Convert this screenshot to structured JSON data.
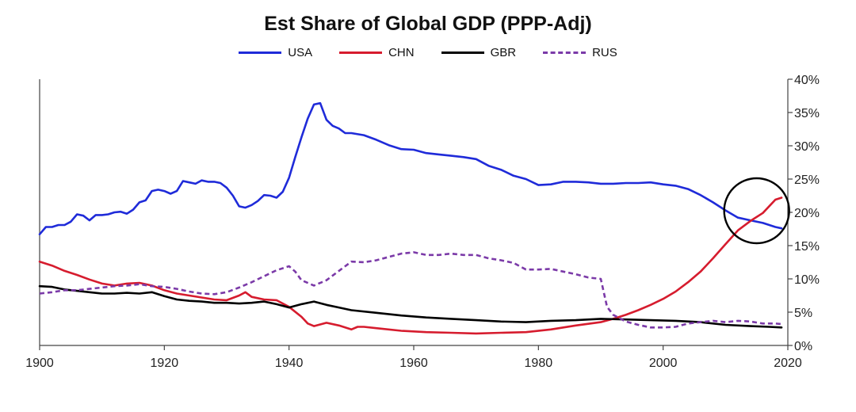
{
  "chart_data": {
    "type": "line",
    "title": "Est Share of Global GDP (PPP-Adj)",
    "xlabel": "",
    "ylabel": "",
    "xlim": [
      1900,
      2020
    ],
    "ylim": [
      0,
      0.4
    ],
    "x_ticks": [
      1900,
      1920,
      1940,
      1960,
      1980,
      2000,
      2020
    ],
    "x_tick_labels": [
      "1900",
      "1920",
      "1940",
      "1960",
      "1980",
      "2000",
      "2020"
    ],
    "y_ticks": [
      0,
      0.05,
      0.1,
      0.15,
      0.2,
      0.25,
      0.3,
      0.35,
      0.4
    ],
    "y_tick_labels": [
      "0%",
      "5%",
      "10%",
      "15%",
      "20%",
      "25%",
      "30%",
      "35%",
      "40%"
    ],
    "y_axis_side": "right",
    "legend_position": "top-center",
    "annotation": {
      "type": "circle",
      "center_year": 2015,
      "center_value": 0.2,
      "note": "crossover of USA and CHN"
    },
    "series": [
      {
        "name": "USA",
        "color": "#1f2bd9",
        "style": "solid",
        "points": [
          [
            1900,
            0.167
          ],
          [
            1901,
            0.178
          ],
          [
            1902,
            0.178
          ],
          [
            1903,
            0.181
          ],
          [
            1904,
            0.181
          ],
          [
            1905,
            0.186
          ],
          [
            1906,
            0.197
          ],
          [
            1907,
            0.195
          ],
          [
            1908,
            0.188
          ],
          [
            1909,
            0.196
          ],
          [
            1910,
            0.196
          ],
          [
            1911,
            0.197
          ],
          [
            1912,
            0.2
          ],
          [
            1913,
            0.201
          ],
          [
            1914,
            0.198
          ],
          [
            1915,
            0.204
          ],
          [
            1916,
            0.215
          ],
          [
            1917,
            0.218
          ],
          [
            1918,
            0.232
          ],
          [
            1919,
            0.234
          ],
          [
            1920,
            0.232
          ],
          [
            1921,
            0.228
          ],
          [
            1922,
            0.232
          ],
          [
            1923,
            0.247
          ],
          [
            1924,
            0.245
          ],
          [
            1925,
            0.243
          ],
          [
            1926,
            0.248
          ],
          [
            1927,
            0.246
          ],
          [
            1928,
            0.246
          ],
          [
            1929,
            0.244
          ],
          [
            1930,
            0.237
          ],
          [
            1931,
            0.225
          ],
          [
            1932,
            0.209
          ],
          [
            1933,
            0.207
          ],
          [
            1934,
            0.211
          ],
          [
            1935,
            0.217
          ],
          [
            1936,
            0.226
          ],
          [
            1937,
            0.225
          ],
          [
            1938,
            0.222
          ],
          [
            1939,
            0.231
          ],
          [
            1940,
            0.252
          ],
          [
            1941,
            0.283
          ],
          [
            1942,
            0.313
          ],
          [
            1943,
            0.341
          ],
          [
            1944,
            0.362
          ],
          [
            1945,
            0.364
          ],
          [
            1946,
            0.339
          ],
          [
            1947,
            0.33
          ],
          [
            1948,
            0.326
          ],
          [
            1949,
            0.319
          ],
          [
            1950,
            0.319
          ],
          [
            1952,
            0.316
          ],
          [
            1954,
            0.309
          ],
          [
            1956,
            0.301
          ],
          [
            1958,
            0.295
          ],
          [
            1960,
            0.294
          ],
          [
            1962,
            0.289
          ],
          [
            1964,
            0.287
          ],
          [
            1966,
            0.285
          ],
          [
            1968,
            0.283
          ],
          [
            1970,
            0.28
          ],
          [
            1972,
            0.27
          ],
          [
            1974,
            0.264
          ],
          [
            1976,
            0.255
          ],
          [
            1978,
            0.25
          ],
          [
            1980,
            0.241
          ],
          [
            1982,
            0.242
          ],
          [
            1984,
            0.246
          ],
          [
            1986,
            0.246
          ],
          [
            1988,
            0.245
          ],
          [
            1990,
            0.243
          ],
          [
            1992,
            0.243
          ],
          [
            1994,
            0.244
          ],
          [
            1996,
            0.244
          ],
          [
            1998,
            0.245
          ],
          [
            2000,
            0.242
          ],
          [
            2002,
            0.24
          ],
          [
            2004,
            0.235
          ],
          [
            2006,
            0.226
          ],
          [
            2008,
            0.215
          ],
          [
            2010,
            0.203
          ],
          [
            2012,
            0.192
          ],
          [
            2014,
            0.188
          ],
          [
            2016,
            0.184
          ],
          [
            2018,
            0.178
          ],
          [
            2019,
            0.176
          ]
        ]
      },
      {
        "name": "CHN",
        "color": "#d61c2e",
        "style": "solid",
        "points": [
          [
            1900,
            0.126
          ],
          [
            1902,
            0.12
          ],
          [
            1904,
            0.112
          ],
          [
            1906,
            0.106
          ],
          [
            1908,
            0.099
          ],
          [
            1910,
            0.093
          ],
          [
            1912,
            0.09
          ],
          [
            1914,
            0.093
          ],
          [
            1916,
            0.094
          ],
          [
            1918,
            0.09
          ],
          [
            1920,
            0.083
          ],
          [
            1922,
            0.078
          ],
          [
            1924,
            0.075
          ],
          [
            1926,
            0.072
          ],
          [
            1928,
            0.069
          ],
          [
            1930,
            0.068
          ],
          [
            1932,
            0.075
          ],
          [
            1933,
            0.08
          ],
          [
            1934,
            0.073
          ],
          [
            1936,
            0.069
          ],
          [
            1938,
            0.068
          ],
          [
            1940,
            0.058
          ],
          [
            1942,
            0.043
          ],
          [
            1943,
            0.033
          ],
          [
            1944,
            0.029
          ],
          [
            1946,
            0.034
          ],
          [
            1948,
            0.03
          ],
          [
            1950,
            0.024
          ],
          [
            1951,
            0.028
          ],
          [
            1952,
            0.028
          ],
          [
            1954,
            0.026
          ],
          [
            1958,
            0.022
          ],
          [
            1962,
            0.02
          ],
          [
            1966,
            0.019
          ],
          [
            1970,
            0.018
          ],
          [
            1974,
            0.019
          ],
          [
            1978,
            0.02
          ],
          [
            1982,
            0.024
          ],
          [
            1986,
            0.03
          ],
          [
            1990,
            0.035
          ],
          [
            1992,
            0.04
          ],
          [
            1994,
            0.046
          ],
          [
            1996,
            0.053
          ],
          [
            1998,
            0.061
          ],
          [
            2000,
            0.07
          ],
          [
            2002,
            0.081
          ],
          [
            2004,
            0.095
          ],
          [
            2006,
            0.111
          ],
          [
            2008,
            0.131
          ],
          [
            2010,
            0.152
          ],
          [
            2012,
            0.173
          ],
          [
            2014,
            0.187
          ],
          [
            2016,
            0.199
          ],
          [
            2018,
            0.219
          ],
          [
            2019,
            0.222
          ]
        ]
      },
      {
        "name": "GBR",
        "color": "#000000",
        "style": "solid",
        "points": [
          [
            1900,
            0.089
          ],
          [
            1902,
            0.088
          ],
          [
            1904,
            0.084
          ],
          [
            1906,
            0.082
          ],
          [
            1908,
            0.08
          ],
          [
            1910,
            0.078
          ],
          [
            1912,
            0.078
          ],
          [
            1914,
            0.079
          ],
          [
            1916,
            0.078
          ],
          [
            1918,
            0.08
          ],
          [
            1920,
            0.074
          ],
          [
            1922,
            0.069
          ],
          [
            1924,
            0.067
          ],
          [
            1926,
            0.066
          ],
          [
            1928,
            0.064
          ],
          [
            1930,
            0.064
          ],
          [
            1932,
            0.063
          ],
          [
            1934,
            0.064
          ],
          [
            1936,
            0.066
          ],
          [
            1938,
            0.062
          ],
          [
            1940,
            0.057
          ],
          [
            1942,
            0.062
          ],
          [
            1944,
            0.066
          ],
          [
            1946,
            0.061
          ],
          [
            1948,
            0.057
          ],
          [
            1950,
            0.053
          ],
          [
            1954,
            0.049
          ],
          [
            1958,
            0.045
          ],
          [
            1962,
            0.042
          ],
          [
            1966,
            0.04
          ],
          [
            1970,
            0.038
          ],
          [
            1974,
            0.036
          ],
          [
            1978,
            0.035
          ],
          [
            1982,
            0.037
          ],
          [
            1986,
            0.038
          ],
          [
            1990,
            0.04
          ],
          [
            1994,
            0.039
          ],
          [
            1998,
            0.038
          ],
          [
            2002,
            0.037
          ],
          [
            2006,
            0.035
          ],
          [
            2010,
            0.031
          ],
          [
            2014,
            0.029
          ],
          [
            2017,
            0.028
          ],
          [
            2019,
            0.027
          ]
        ]
      },
      {
        "name": "RUS",
        "color": "#7b3aa8",
        "style": "dashed",
        "points": [
          [
            1900,
            0.078
          ],
          [
            1902,
            0.08
          ],
          [
            1904,
            0.083
          ],
          [
            1906,
            0.083
          ],
          [
            1908,
            0.085
          ],
          [
            1910,
            0.087
          ],
          [
            1912,
            0.089
          ],
          [
            1914,
            0.09
          ],
          [
            1916,
            0.092
          ],
          [
            1918,
            0.089
          ],
          [
            1920,
            0.088
          ],
          [
            1922,
            0.085
          ],
          [
            1924,
            0.081
          ],
          [
            1926,
            0.078
          ],
          [
            1928,
            0.077
          ],
          [
            1930,
            0.08
          ],
          [
            1932,
            0.087
          ],
          [
            1934,
            0.095
          ],
          [
            1936,
            0.104
          ],
          [
            1938,
            0.113
          ],
          [
            1940,
            0.119
          ],
          [
            1941,
            0.111
          ],
          [
            1942,
            0.098
          ],
          [
            1944,
            0.09
          ],
          [
            1946,
            0.098
          ],
          [
            1948,
            0.112
          ],
          [
            1950,
            0.126
          ],
          [
            1952,
            0.125
          ],
          [
            1954,
            0.128
          ],
          [
            1956,
            0.133
          ],
          [
            1958,
            0.138
          ],
          [
            1960,
            0.14
          ],
          [
            1962,
            0.136
          ],
          [
            1964,
            0.136
          ],
          [
            1966,
            0.138
          ],
          [
            1968,
            0.136
          ],
          [
            1970,
            0.136
          ],
          [
            1972,
            0.131
          ],
          [
            1974,
            0.128
          ],
          [
            1976,
            0.124
          ],
          [
            1978,
            0.114
          ],
          [
            1980,
            0.114
          ],
          [
            1982,
            0.115
          ],
          [
            1984,
            0.111
          ],
          [
            1986,
            0.107
          ],
          [
            1988,
            0.102
          ],
          [
            1990,
            0.1
          ],
          [
            1991,
            0.058
          ],
          [
            1992,
            0.046
          ],
          [
            1994,
            0.036
          ],
          [
            1996,
            0.031
          ],
          [
            1998,
            0.027
          ],
          [
            2000,
            0.027
          ],
          [
            2002,
            0.028
          ],
          [
            2004,
            0.033
          ],
          [
            2006,
            0.035
          ],
          [
            2008,
            0.037
          ],
          [
            2010,
            0.035
          ],
          [
            2012,
            0.037
          ],
          [
            2014,
            0.036
          ],
          [
            2016,
            0.033
          ],
          [
            2018,
            0.033
          ],
          [
            2019,
            0.032
          ]
        ]
      }
    ]
  }
}
